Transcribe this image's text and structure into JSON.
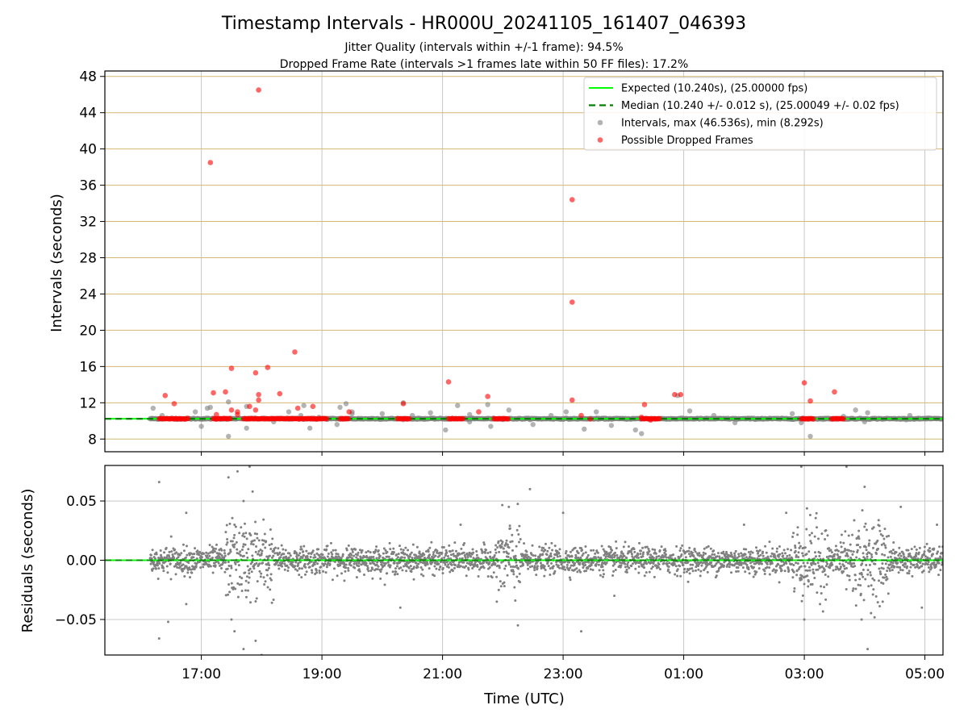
{
  "chart_data": [
    {
      "type": "scatter",
      "title": "Timestamp Intervals - HR000U_20241105_161407_046393",
      "subtitle_1": "Jitter Quality (intervals within +/-1 frame): 94.5%",
      "subtitle_2": "Dropped Frame Rate (intervals >1 frames late within 50 FF files): 17.2%",
      "xlabel": "",
      "ylabel": "Intervals (seconds)",
      "x_unit": "hours since 16:00 UTC",
      "xlim": [
        -0.6,
        13.3
      ],
      "ylim": [
        6.6,
        48.6
      ],
      "y_ticks": [
        8,
        12,
        16,
        20,
        24,
        28,
        32,
        36,
        40,
        44,
        48
      ],
      "grid": true,
      "legend_position": "top-right",
      "expected_interval": 10.24,
      "median_interval": 10.24,
      "legend": [
        {
          "label": "Expected (10.240s), (25.00000 fps)",
          "color": "#00ff00",
          "style": "solid-line"
        },
        {
          "label": "Median (10.240 +/- 0.012 s), (25.00049 +/- 0.02 fps)",
          "color": "#008000",
          "style": "dashed-line"
        },
        {
          "label": "Intervals, max (46.536s), min (8.292s)",
          "color": "#808080",
          "style": "dot"
        },
        {
          "label": "Possible Dropped Frames",
          "color": "#ff0000",
          "style": "dot"
        }
      ],
      "series": [
        {
          "name": "Possible Dropped Frames",
          "color": "#ff0000",
          "points": [
            [
              0.4,
              12.8
            ],
            [
              0.55,
              11.9
            ],
            [
              1.15,
              38.5
            ],
            [
              1.2,
              13.1
            ],
            [
              1.25,
              10.7
            ],
            [
              1.4,
              13.2
            ],
            [
              1.5,
              15.8
            ],
            [
              1.5,
              11.2
            ],
            [
              1.6,
              11.0
            ],
            [
              1.6,
              10.7
            ],
            [
              1.8,
              11.6
            ],
            [
              1.9,
              15.3
            ],
            [
              1.9,
              11.2
            ],
            [
              1.95,
              46.5
            ],
            [
              1.95,
              12.9
            ],
            [
              1.95,
              12.3
            ],
            [
              2.1,
              15.9
            ],
            [
              2.3,
              13.0
            ],
            [
              2.55,
              17.6
            ],
            [
              2.6,
              11.4
            ],
            [
              2.85,
              11.6
            ],
            [
              3.45,
              11.0
            ],
            [
              4.35,
              11.9
            ],
            [
              5.1,
              14.3
            ],
            [
              5.6,
              11.0
            ],
            [
              5.75,
              12.7
            ],
            [
              7.15,
              34.4
            ],
            [
              7.15,
              23.1
            ],
            [
              7.15,
              12.3
            ],
            [
              7.3,
              10.6
            ],
            [
              7.45,
              10.2
            ],
            [
              8.3,
              10.4
            ],
            [
              8.35,
              11.8
            ],
            [
              8.45,
              10.1
            ],
            [
              8.85,
              12.9
            ],
            [
              8.95,
              12.9
            ],
            [
              11.0,
              14.2
            ],
            [
              11.1,
              12.2
            ],
            [
              11.5,
              13.2
            ]
          ],
          "dense_runs": [
            [
              0.3,
              0.8
            ],
            [
              1.2,
              1.5
            ],
            [
              1.7,
              3.1
            ],
            [
              3.3,
              3.45
            ],
            [
              4.25,
              4.45
            ],
            [
              5.1,
              5.35
            ],
            [
              5.85,
              6.1
            ],
            [
              8.3,
              8.6
            ],
            [
              10.95,
              11.15
            ],
            [
              11.45,
              11.65
            ]
          ]
        },
        {
          "name": "Intervals",
          "color": "#808080",
          "points": [
            [
              0.2,
              11.4
            ],
            [
              0.35,
              10.6
            ],
            [
              0.9,
              11.0
            ],
            [
              1.0,
              9.4
            ],
            [
              1.1,
              11.4
            ],
            [
              1.15,
              11.5
            ],
            [
              1.45,
              12.1
            ],
            [
              1.45,
              8.3
            ],
            [
              1.75,
              11.6
            ],
            [
              1.75,
              9.2
            ],
            [
              2.8,
              9.2
            ],
            [
              2.2,
              9.9
            ],
            [
              2.45,
              11.0
            ],
            [
              2.7,
              11.7
            ],
            [
              3.25,
              9.6
            ],
            [
              3.5,
              11.0
            ],
            [
              3.4,
              11.9
            ],
            [
              2.95,
              10.4
            ],
            [
              3.5,
              10.8
            ],
            [
              4.35,
              12.0
            ],
            [
              4.5,
              10.6
            ],
            [
              4.8,
              10.9
            ],
            [
              5.05,
              9.0
            ],
            [
              5.25,
              11.7
            ],
            [
              5.45,
              9.9
            ],
            [
              5.75,
              11.8
            ],
            [
              5.8,
              9.4
            ],
            [
              6.5,
              9.6
            ],
            [
              7.05,
              11.0
            ],
            [
              7.35,
              9.1
            ],
            [
              7.55,
              11.0
            ],
            [
              7.8,
              9.5
            ],
            [
              8.2,
              9.0
            ],
            [
              8.3,
              8.6
            ],
            [
              8.9,
              12.8
            ],
            [
              9.5,
              10.6
            ],
            [
              9.85,
              9.8
            ],
            [
              10.3,
              10.3
            ],
            [
              10.8,
              10.8
            ],
            [
              10.95,
              9.8
            ],
            [
              11.1,
              8.3
            ],
            [
              11.35,
              10.3
            ],
            [
              11.65,
              10.5
            ],
            [
              11.85,
              11.2
            ],
            [
              12.05,
              10.9
            ],
            [
              12.75,
              10.6
            ],
            [
              13.1,
              10.3
            ],
            [
              3.3,
              11.5
            ],
            [
              6.1,
              11.2
            ],
            [
              9.1,
              11.1
            ],
            [
              12.0,
              9.9
            ],
            [
              5.45,
              10.7
            ],
            [
              2.65,
              10.6
            ],
            [
              4.0,
              10.8
            ],
            [
              6.8,
              10.6
            ]
          ],
          "baseline_range": [
            0.15,
            13.3
          ]
        }
      ]
    },
    {
      "type": "scatter",
      "xlabel": "Time (UTC)",
      "ylabel": "Residuals (seconds)",
      "x_unit": "hours since 16:00 UTC",
      "xlim": [
        -0.6,
        13.3
      ],
      "ylim": [
        -0.08,
        0.08
      ],
      "y_ticks": [
        -0.05,
        0.0,
        0.05
      ],
      "y_tick_labels": [
        "−0.05",
        "0.00",
        "0.05"
      ],
      "x_ticks": [
        1,
        3,
        5,
        7,
        9,
        11,
        13
      ],
      "x_tick_labels": [
        "17:00",
        "19:00",
        "21:00",
        "23:00",
        "01:00",
        "03:00",
        "05:00"
      ],
      "grid": true,
      "zero_line_color": "#00ff00",
      "median_line_color": "#008000",
      "series": [
        {
          "name": "Residuals",
          "color": "#808080",
          "x_range": [
            0.15,
            13.3
          ],
          "outliers": [
            [
              0.3,
              0.066
            ],
            [
              0.3,
              -0.066
            ],
            [
              0.75,
              0.04
            ],
            [
              0.75,
              -0.037
            ],
            [
              1.45,
              0.07
            ],
            [
              1.55,
              -0.06
            ],
            [
              1.6,
              0.075
            ],
            [
              1.7,
              -0.075
            ],
            [
              1.8,
              0.079
            ],
            [
              1.85,
              0.058
            ],
            [
              1.9,
              -0.068
            ],
            [
              2.0,
              -0.08
            ],
            [
              1.7,
              0.05
            ],
            [
              1.5,
              -0.05
            ],
            [
              1.55,
              0.03
            ],
            [
              4.3,
              -0.04
            ],
            [
              6.45,
              0.06
            ],
            [
              6.25,
              -0.055
            ],
            [
              6.1,
              0.045
            ],
            [
              7.3,
              -0.06
            ],
            [
              7.0,
              0.04
            ],
            [
              7.85,
              -0.03
            ],
            [
              10.0,
              0.03
            ],
            [
              10.95,
              0.079
            ],
            [
              11.0,
              -0.05
            ],
            [
              10.7,
              0.04
            ],
            [
              11.7,
              0.079
            ],
            [
              11.95,
              -0.05
            ],
            [
              12.0,
              0.062
            ],
            [
              12.05,
              -0.075
            ],
            [
              12.3,
              -0.035
            ],
            [
              12.6,
              0.045
            ],
            [
              12.95,
              -0.04
            ],
            [
              13.2,
              0.03
            ],
            [
              0.45,
              -0.052
            ],
            [
              0.5,
              0.02
            ],
            [
              5.3,
              0.03
            ],
            [
              5.9,
              -0.035
            ]
          ],
          "active_regions": [
            [
              1.4,
              2.2
            ],
            [
              5.9,
              6.3
            ],
            [
              10.8,
              11.4
            ],
            [
              11.6,
              12.4
            ]
          ]
        }
      ]
    }
  ]
}
